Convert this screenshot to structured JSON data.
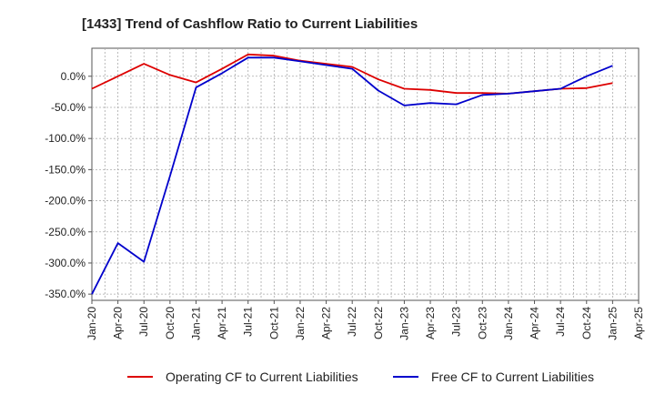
{
  "chart_data": {
    "type": "line",
    "title": "[1433]  Trend of Cashflow Ratio to Current Liabilities",
    "xlabel": "",
    "ylabel": "",
    "ylim": [
      -360,
      45
    ],
    "yticks": [
      0,
      -50,
      -100,
      -150,
      -200,
      -250,
      -300,
      -350
    ],
    "ytick_labels": [
      "0.0%",
      "-50.0%",
      "-100.0%",
      "-150.0%",
      "-200.0%",
      "-250.0%",
      "-300.0%",
      "-350.0%"
    ],
    "x_ticks": [
      "Jan-20",
      "Apr-20",
      "Jul-20",
      "Oct-20",
      "Jan-21",
      "Apr-21",
      "Jul-21",
      "Oct-21",
      "Jan-22",
      "Apr-22",
      "Jul-22",
      "Oct-22",
      "Jan-23",
      "Apr-23",
      "Jul-23",
      "Oct-23",
      "Jan-24",
      "Apr-24",
      "Jul-24",
      "Oct-24",
      "Jan-25",
      "Apr-25"
    ],
    "grid": true,
    "legend_position": "bottom",
    "series": [
      {
        "name": "Operating CF to Current Liabilities",
        "color": "#dd0000",
        "x": [
          "Jan-20",
          "Apr-20",
          "Jul-20",
          "Oct-20",
          "Jan-21",
          "Apr-21",
          "Jul-21",
          "Oct-21",
          "Jan-22",
          "Apr-22",
          "Jul-22",
          "Oct-22",
          "Jan-23",
          "Apr-23",
          "Jul-23",
          "Oct-23",
          "Jan-24",
          "Apr-24",
          "Jul-24",
          "Oct-24",
          "Jan-25"
        ],
        "values": [
          -20,
          0,
          20,
          2,
          -10,
          12,
          35,
          33,
          25,
          20,
          15,
          -5,
          -20,
          -22,
          -27,
          -27,
          -28,
          -24,
          -20,
          -19,
          -11
        ]
      },
      {
        "name": "Free CF to Current Liabilities",
        "color": "#0000cc",
        "x": [
          "Jan-20",
          "Apr-20",
          "Jul-20",
          "Oct-20",
          "Jan-21",
          "Apr-21",
          "Jul-21",
          "Oct-21",
          "Jan-22",
          "Apr-22",
          "Jul-22",
          "Oct-22",
          "Jan-23",
          "Apr-23",
          "Jul-23",
          "Oct-23",
          "Jan-24",
          "Apr-24",
          "Jul-24",
          "Oct-24",
          "Jan-25"
        ],
        "values": [
          -350,
          -268,
          -298,
          -160,
          -18,
          5,
          30,
          30,
          24,
          18,
          12,
          -23,
          -47,
          -43,
          -45,
          -30,
          -28,
          -24,
          -20,
          0,
          17
        ]
      }
    ]
  }
}
